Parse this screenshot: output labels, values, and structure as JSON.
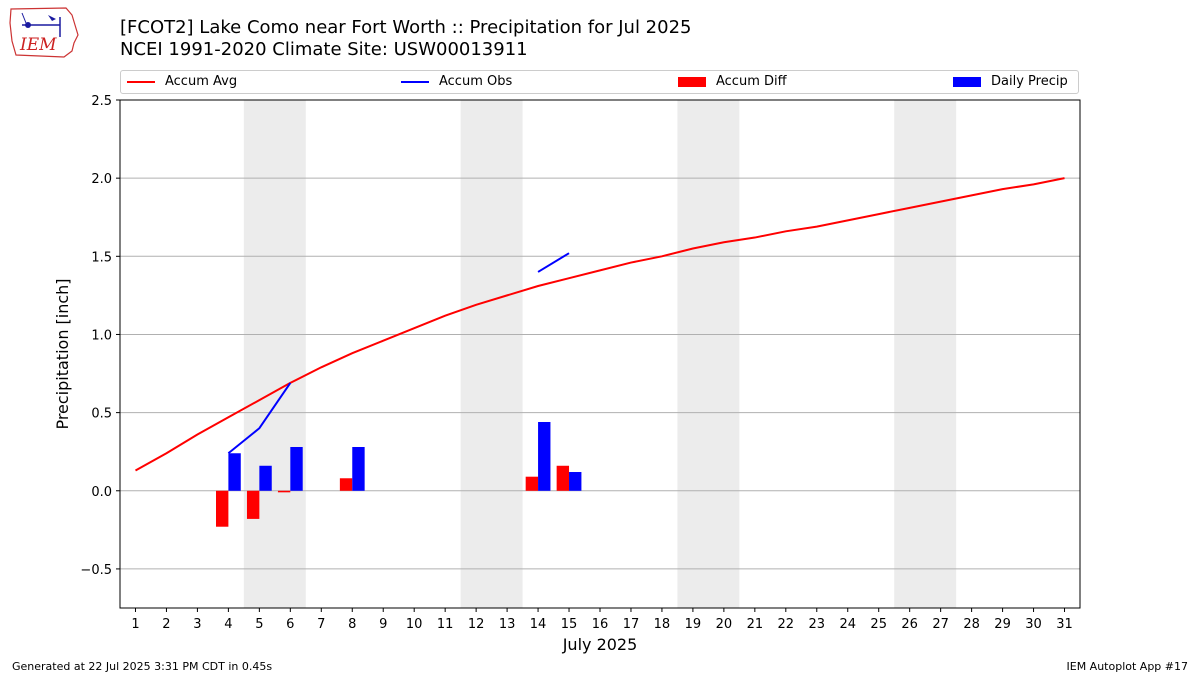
{
  "header": {
    "title": "[FCOT2] Lake Como near Fort Worth :: Precipitation for Jul 2025",
    "subtitle": "NCEI 1991-2020 Climate Site: USW00013911"
  },
  "logo": {
    "text": "IEM",
    "icon": "iem-logo-icon"
  },
  "legend": {
    "items": [
      {
        "label": "Accum Avg",
        "kind": "line",
        "color": "#ff0000"
      },
      {
        "label": "Accum Obs",
        "kind": "line",
        "color": "#0000ff"
      },
      {
        "label": "Accum Diff",
        "kind": "box",
        "color": "#ff0000"
      },
      {
        "label": "Daily Precip",
        "kind": "box",
        "color": "#0000ff"
      }
    ]
  },
  "footer": {
    "left": "Generated at 22 Jul 2025 3:31 PM CDT in 0.45s",
    "right": "IEM Autoplot App #17"
  },
  "chart_data": {
    "type": "bar",
    "xlabel": "July 2025",
    "ylabel": "Precipitation [inch]",
    "ylim": [
      -0.75,
      2.5
    ],
    "xlim": [
      0.5,
      31.5
    ],
    "yticks": [
      -0.5,
      0.0,
      0.5,
      1.0,
      1.5,
      2.0,
      2.5
    ],
    "ytick_labels": [
      "−0.5",
      "0.0",
      "0.5",
      "1.0",
      "1.5",
      "2.0",
      "2.5"
    ],
    "xticks": [
      1,
      2,
      3,
      4,
      5,
      6,
      7,
      8,
      9,
      10,
      11,
      12,
      13,
      14,
      15,
      16,
      17,
      18,
      19,
      20,
      21,
      22,
      23,
      24,
      25,
      26,
      27,
      28,
      29,
      30,
      31
    ],
    "grid": "horizontal",
    "weekend_shading": [
      [
        4.5,
        6.5
      ],
      [
        11.5,
        13.5
      ],
      [
        18.5,
        20.5
      ],
      [
        25.5,
        27.5
      ]
    ],
    "shade_color": "#ececec",
    "series": [
      {
        "name": "Accum Avg",
        "kind": "line",
        "color": "#ff0000",
        "x": [
          1,
          2,
          3,
          4,
          5,
          6,
          7,
          8,
          9,
          10,
          11,
          12,
          13,
          14,
          15,
          16,
          17,
          18,
          19,
          20,
          21,
          22,
          23,
          24,
          25,
          26,
          27,
          28,
          29,
          30,
          31
        ],
        "values": [
          0.13,
          0.24,
          0.36,
          0.47,
          0.58,
          0.69,
          0.79,
          0.88,
          0.96,
          1.04,
          1.12,
          1.19,
          1.25,
          1.31,
          1.36,
          1.41,
          1.46,
          1.5,
          1.55,
          1.59,
          1.62,
          1.66,
          1.69,
          1.73,
          1.77,
          1.81,
          1.85,
          1.89,
          1.93,
          1.96,
          2.0
        ]
      },
      {
        "name": "Accum Obs",
        "kind": "line",
        "color": "#0000ff",
        "segments": [
          {
            "x": [
              4,
              5,
              6
            ],
            "values": [
              0.24,
              0.4,
              0.69
            ]
          },
          {
            "x": [
              14,
              15
            ],
            "values": [
              1.4,
              1.52
            ]
          }
        ]
      },
      {
        "name": "Accum Diff",
        "kind": "bar",
        "color": "#ff0000",
        "x": [
          4,
          5,
          6,
          8,
          14,
          15
        ],
        "values": [
          -0.23,
          -0.18,
          -0.01,
          0.08,
          0.09,
          0.16
        ]
      },
      {
        "name": "Daily Precip",
        "kind": "bar",
        "color": "#0000ff",
        "x": [
          4,
          5,
          6,
          8,
          14,
          15
        ],
        "values": [
          0.24,
          0.16,
          0.28,
          0.28,
          0.44,
          0.12
        ]
      }
    ]
  }
}
